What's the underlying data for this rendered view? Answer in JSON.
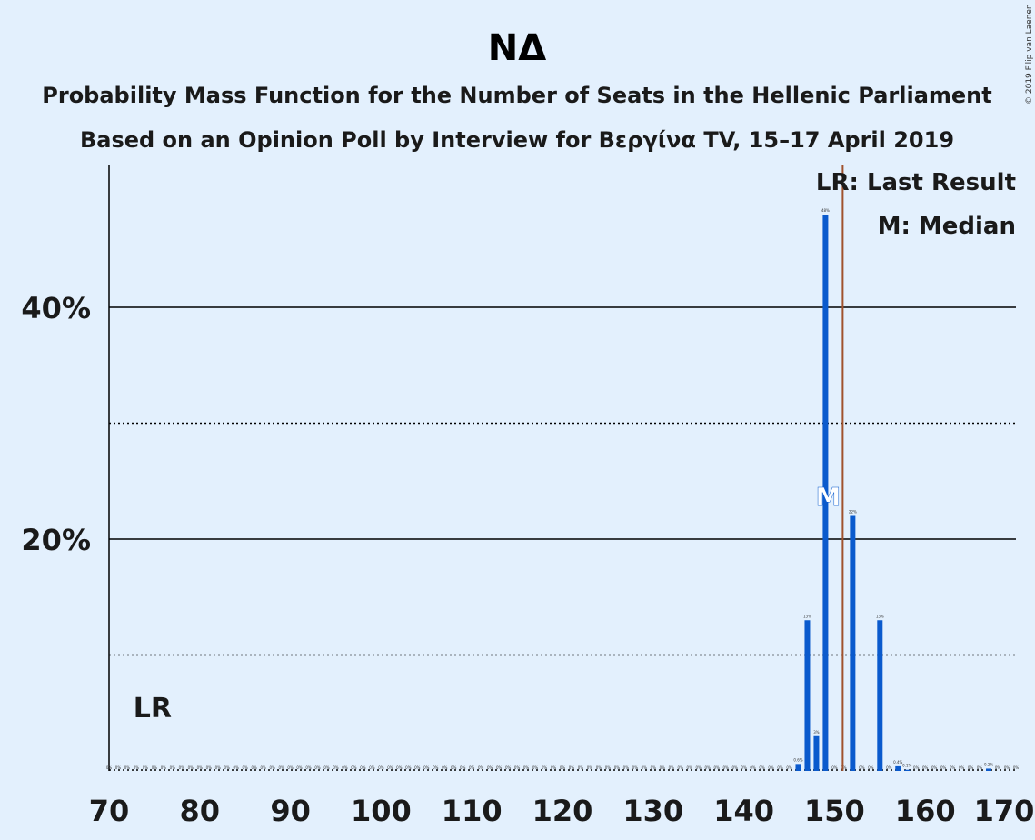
{
  "copyright": "© 2019 Filip van Laenen",
  "chart_data": {
    "type": "bar",
    "title": "ΝΔ",
    "subtitle_lines": [
      "Probability Mass Function for the Number of Seats in the Hellenic Parliament",
      "Based on an Opinion Poll by Interview for Βεργίνα TV, 15–17 April 2019"
    ],
    "xlim": [
      70,
      170
    ],
    "ylim": [
      0,
      0.52
    ],
    "x_ticks": [
      70,
      80,
      90,
      100,
      110,
      120,
      130,
      140,
      150,
      160,
      170
    ],
    "y_ticks": [
      {
        "value": 0.2,
        "label": "20%"
      },
      {
        "value": 0.4,
        "label": "40%"
      }
    ],
    "minor_gridlines": [
      0.1,
      0.3
    ],
    "bars": [
      {
        "seats": 146,
        "value": 0.006,
        "label": "0.6%"
      },
      {
        "seats": 147,
        "value": 0.13,
        "label": "13%"
      },
      {
        "seats": 148,
        "value": 0.03,
        "label": "3%"
      },
      {
        "seats": 149,
        "value": 0.48,
        "label": "48%"
      },
      {
        "seats": 152,
        "value": 0.22,
        "label": "22%"
      },
      {
        "seats": 155,
        "value": 0.13,
        "label": "13%"
      },
      {
        "seats": 157,
        "value": 0.004,
        "label": "0.4%"
      },
      {
        "seats": 158,
        "value": 0.001,
        "label": "0.1%"
      },
      {
        "seats": 167,
        "value": 0.002,
        "label": "0.2%"
      }
    ],
    "zero_label": "0%",
    "last_result": {
      "seats": 75,
      "label": "LR"
    },
    "majority_line_seats": 151,
    "median": {
      "seats": 149,
      "label": "M"
    },
    "legend": [
      "LR: Last Result",
      "M: Median"
    ],
    "colors": {
      "bar": "#0a5acd",
      "majority_line": "#a0522d",
      "background": "#e3f0fd"
    }
  }
}
